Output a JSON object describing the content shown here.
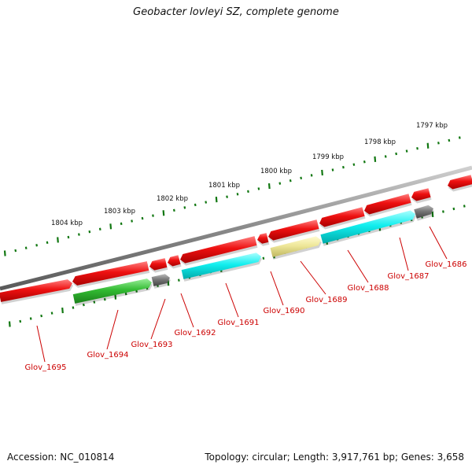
{
  "title": "Geobacter lovleyi SZ, complete genome",
  "footer": {
    "accession": "Accession: NC_010814",
    "stats": "Topology: circular; Length: 3,917,761 bp; Genes: 3,658"
  },
  "colors": {
    "backbone": "#8a8a8a",
    "red": "#ee1111",
    "cyan": "#11eeee",
    "green": "#33bb33",
    "gray": "#777777",
    "khaki": "#eee799",
    "tick": "#117711",
    "label": "#cc0000"
  },
  "scale_labels": [
    "1797 kbp",
    "1798 kbp",
    "1799 kbp",
    "1800 kbp",
    "1801 kbp",
    "1802 kbp",
    "1803 kbp",
    "1804 kbp"
  ],
  "gene_labels": [
    "Glov_1686",
    "Glov_1687",
    "Glov_1688",
    "Glov_1689",
    "Glov_1690",
    "Glov_1691",
    "Glov_1692",
    "Glov_1693",
    "Glov_1694",
    "Glov_1695"
  ]
}
